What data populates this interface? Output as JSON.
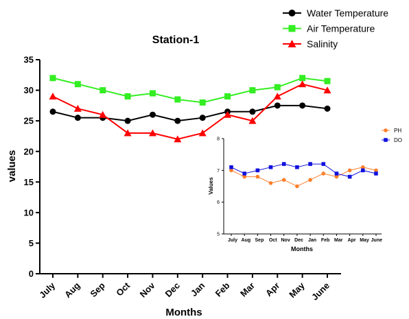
{
  "chart_data": [
    {
      "type": "line",
      "title": "Station-1",
      "xlabel": "Months",
      "ylabel": "values",
      "categories": [
        "July",
        "Aug",
        "Sep",
        "Oct",
        "Nov",
        "Dec",
        "Jan",
        "Feb",
        "Mar",
        "Apr",
        "May",
        "June"
      ],
      "ylim": [
        0,
        35
      ],
      "yticks": [
        "0",
        "5",
        "10",
        "15",
        "20",
        "25",
        "30",
        "35"
      ],
      "grid": false,
      "legend": "top-right",
      "series": [
        {
          "name": "Water Temperature",
          "color": "#000000",
          "marker": "circle",
          "values": [
            26.5,
            25.5,
            25.5,
            25.0,
            26.0,
            25.0,
            25.5,
            26.5,
            26.5,
            27.5,
            27.5,
            27.0
          ]
        },
        {
          "name": "Air Temperature",
          "color": "#33ee22",
          "marker": "square",
          "values": [
            32.0,
            31.0,
            30.0,
            29.0,
            29.5,
            28.5,
            28.0,
            29.0,
            30.0,
            30.5,
            32.0,
            31.5
          ]
        },
        {
          "name": "Salinity",
          "color": "#ff0000",
          "marker": "triangle",
          "values": [
            29.0,
            27.0,
            26.0,
            23.0,
            23.0,
            22.0,
            23.0,
            26.0,
            25.0,
            29.0,
            31.0,
            30.0
          ]
        }
      ]
    },
    {
      "type": "line",
      "title": "",
      "xlabel": "Months",
      "ylabel": "Values",
      "categories": [
        "July",
        "Aug",
        "Sep",
        "Oct",
        "Nov",
        "Dec",
        "Jan",
        "Feb",
        "Mar",
        "Apr",
        "May",
        "June"
      ],
      "ylim": [
        5,
        8
      ],
      "yticks": [
        "5",
        "6",
        "7",
        "8"
      ],
      "grid": false,
      "legend": "top-right",
      "series": [
        {
          "name": "PH",
          "color": "#ff7f2a",
          "marker": "circle",
          "values": [
            7.0,
            6.8,
            6.8,
            6.6,
            6.7,
            6.5,
            6.7,
            6.9,
            6.8,
            7.0,
            7.1,
            7.0
          ]
        },
        {
          "name": "DO",
          "color": "#1111dd",
          "marker": "square",
          "values": [
            7.1,
            6.9,
            7.0,
            7.1,
            7.2,
            7.1,
            7.2,
            7.2,
            6.9,
            6.8,
            7.0,
            6.9
          ]
        }
      ]
    }
  ]
}
